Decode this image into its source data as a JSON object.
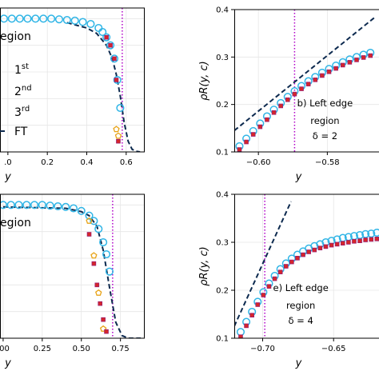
{
  "colors": {
    "fourth_order": "#30b5e6",
    "first_order": "#e8a317",
    "second_order": "#d62728",
    "third_order": "#9b1b6e",
    "ft": "#0d2a4f",
    "vline": "#b000c8"
  },
  "chart_data": [
    {
      "panel": "top-left",
      "type": "scatter",
      "xlabel": "y",
      "ylabel": "",
      "xlim": [
        -0.04,
        0.69
      ],
      "ylim": [
        0.0,
        1.08
      ],
      "xticks": [
        0.0,
        0.2,
        0.4,
        0.6
      ],
      "xtick_labels": [
        ".0",
        "0.2",
        "0.4",
        "0.6"
      ],
      "grid": true,
      "vline_x": 0.58,
      "legend": {
        "title_fragment": "egion",
        "items": [
          {
            "label_main": "1",
            "label_sup": "st",
            "series": "first"
          },
          {
            "label_main": "2",
            "label_sup": "nd",
            "series": "second"
          },
          {
            "label_main": "3",
            "label_sup": "rd",
            "series": "third"
          },
          {
            "label_main": "FT",
            "label_sup": "",
            "series": "ft"
          }
        ]
      },
      "series": [
        {
          "key": "fourth",
          "marker": "circle",
          "x": [
            -0.02,
            0.02,
            0.06,
            0.1,
            0.14,
            0.18,
            0.22,
            0.26,
            0.3,
            0.34,
            0.38,
            0.42,
            0.46,
            0.48,
            0.5,
            0.52,
            0.54,
            0.555,
            0.57
          ],
          "y": [
            1.0,
            1.0,
            1.0,
            1.0,
            1.0,
            1.0,
            1.0,
            0.995,
            0.99,
            0.985,
            0.975,
            0.96,
            0.93,
            0.9,
            0.86,
            0.8,
            0.7,
            0.54,
            0.33
          ]
        },
        {
          "key": "first",
          "marker": "pentagon",
          "x": [
            0.55,
            0.56
          ],
          "y": [
            0.17,
            0.12
          ]
        },
        {
          "key": "second",
          "marker": "square",
          "x": [
            0.5,
            0.52,
            0.54,
            0.55,
            0.56
          ],
          "y": [
            0.86,
            0.8,
            0.7,
            0.54,
            0.08
          ]
        },
        {
          "key": "ft",
          "type": "dashed-line",
          "x": [
            0.3,
            0.4,
            0.45,
            0.5,
            0.53,
            0.55,
            0.57,
            0.59,
            0.61,
            0.63,
            0.65,
            0.67
          ],
          "y": [
            0.97,
            0.93,
            0.89,
            0.8,
            0.7,
            0.58,
            0.42,
            0.22,
            0.08,
            0.02,
            0.005,
            0.0
          ]
        }
      ]
    },
    {
      "panel": "top-right",
      "type": "scatter",
      "xlabel": "y",
      "ylabel": "ρR(y, c)",
      "xlim": [
        -0.607,
        -0.565
      ],
      "ylim": [
        0.1,
        0.4
      ],
      "xticks": [
        -0.6,
        -0.58
      ],
      "xtick_labels": [
        "−0.60",
        "−0.58"
      ],
      "yticks": [
        0.1,
        0.2,
        0.3,
        0.4
      ],
      "ytick_labels": [
        "0.1",
        "0.2",
        "0.3",
        "0.4"
      ],
      "grid": true,
      "vline_x": -0.5895,
      "annotation": [
        "b) Left edge",
        "region",
        "δ = 2"
      ],
      "series": [
        {
          "key": "fourth",
          "marker": "circle",
          "x": [
            -0.6055,
            -0.6035,
            -0.6015,
            -0.5995,
            -0.5975,
            -0.5955,
            -0.5935,
            -0.5915,
            -0.5895,
            -0.5875,
            -0.5855,
            -0.5835,
            -0.5815,
            -0.5795,
            -0.5775,
            -0.5755,
            -0.5735,
            -0.5715,
            -0.5695,
            -0.5675
          ],
          "y": [
            0.112,
            0.128,
            0.144,
            0.16,
            0.175,
            0.189,
            0.203,
            0.216,
            0.228,
            0.239,
            0.249,
            0.258,
            0.267,
            0.275,
            0.282,
            0.289,
            0.295,
            0.3,
            0.305,
            0.309
          ]
        },
        {
          "key": "second",
          "marker": "square",
          "x": [
            -0.6055,
            -0.6035,
            -0.6015,
            -0.5995,
            -0.5975,
            -0.5955,
            -0.5935,
            -0.5915,
            -0.5895,
            -0.5875,
            -0.5855,
            -0.5835,
            -0.5815,
            -0.5795,
            -0.5775,
            -0.5755,
            -0.5735,
            -0.5715,
            -0.5695,
            -0.5675
          ],
          "y": [
            0.105,
            0.121,
            0.137,
            0.153,
            0.168,
            0.183,
            0.197,
            0.21,
            0.222,
            0.233,
            0.243,
            0.252,
            0.261,
            0.269,
            0.276,
            0.283,
            0.289,
            0.294,
            0.299,
            0.303
          ]
        },
        {
          "key": "ft",
          "type": "dashed-line",
          "x": [
            -0.607,
            -0.566
          ],
          "y": [
            0.145,
            0.385
          ]
        }
      ]
    },
    {
      "panel": "bottom-left",
      "type": "scatter",
      "xlabel": "y",
      "ylabel": "",
      "xlim": [
        -0.02,
        0.9
      ],
      "ylim": [
        0.0,
        1.08
      ],
      "xticks": [
        0.0,
        0.25,
        0.5,
        0.75
      ],
      "xtick_labels": [
        ".00",
        "0.25",
        "0.50",
        "0.75"
      ],
      "grid": true,
      "vline_x": 0.7,
      "legend": {
        "title_fragment": "egion"
      },
      "series": [
        {
          "key": "fourth",
          "marker": "circle",
          "x": [
            0.0,
            0.05,
            0.1,
            0.15,
            0.2,
            0.25,
            0.3,
            0.35,
            0.4,
            0.45,
            0.5,
            0.55,
            0.58,
            0.61,
            0.64,
            0.66,
            0.68
          ],
          "y": [
            1.0,
            1.0,
            1.0,
            1.0,
            1.0,
            1.0,
            0.995,
            0.99,
            0.985,
            0.975,
            0.955,
            0.92,
            0.88,
            0.82,
            0.72,
            0.63,
            0.5
          ]
        },
        {
          "key": "first",
          "marker": "pentagon",
          "x": [
            0.55,
            0.58,
            0.61,
            0.64
          ],
          "y": [
            0.88,
            0.62,
            0.34,
            0.07
          ]
        },
        {
          "key": "second",
          "marker": "square",
          "x": [
            0.55,
            0.58,
            0.6,
            0.62,
            0.64,
            0.66
          ],
          "y": [
            0.78,
            0.56,
            0.4,
            0.26,
            0.14,
            0.05
          ]
        },
        {
          "key": "ft",
          "type": "dashed-line",
          "x": [
            0.0,
            0.4,
            0.5,
            0.55,
            0.6,
            0.64,
            0.68,
            0.72,
            0.76,
            0.8,
            0.88
          ],
          "y": [
            0.985,
            0.975,
            0.95,
            0.92,
            0.84,
            0.66,
            0.38,
            0.12,
            0.02,
            0.0,
            0.0
          ]
        }
      ]
    },
    {
      "panel": "bottom-right",
      "type": "scatter",
      "xlabel": "y",
      "ylabel": "ρR(y, c)",
      "xlim": [
        -0.72,
        -0.618
      ],
      "ylim": [
        0.1,
        0.4
      ],
      "xticks": [
        -0.7,
        -0.65
      ],
      "xtick_labels": [
        "−0.70",
        "−0.65"
      ],
      "yticks": [
        0.1,
        0.2,
        0.3,
        0.4
      ],
      "ytick_labels": [
        "0.1",
        "0.2",
        "0.3",
        "0.4"
      ],
      "grid": true,
      "vline_x": -0.6985,
      "annotation": [
        "e) Left edge",
        "region",
        "δ = 4"
      ],
      "series": [
        {
          "key": "fourth",
          "marker": "circle",
          "x": [
            -0.7155,
            -0.7115,
            -0.7075,
            -0.7035,
            -0.6995,
            -0.6955,
            -0.6915,
            -0.6875,
            -0.6835,
            -0.6795,
            -0.6755,
            -0.6715,
            -0.6675,
            -0.6635,
            -0.6595,
            -0.6555,
            -0.6515,
            -0.6475,
            -0.6435,
            -0.6395,
            -0.6355,
            -0.6315,
            -0.6275,
            -0.6235,
            -0.6195
          ],
          "y": [
            0.113,
            0.134,
            0.155,
            0.176,
            0.196,
            0.214,
            0.23,
            0.244,
            0.256,
            0.266,
            0.274,
            0.281,
            0.287,
            0.292,
            0.296,
            0.3,
            0.303,
            0.306,
            0.309,
            0.311,
            0.313,
            0.315,
            0.317,
            0.318,
            0.32
          ]
        },
        {
          "key": "second",
          "marker": "square",
          "x": [
            -0.7155,
            -0.7115,
            -0.7075,
            -0.7035,
            -0.6995,
            -0.6955,
            -0.6915,
            -0.6875,
            -0.6835,
            -0.6795,
            -0.6755,
            -0.6715,
            -0.6675,
            -0.6635,
            -0.6595,
            -0.6555,
            -0.6515,
            -0.6475,
            -0.6435,
            -0.6395,
            -0.6355,
            -0.6315,
            -0.6275,
            -0.6235,
            -0.6195
          ],
          "y": [
            0.103,
            0.126,
            0.148,
            0.17,
            0.19,
            0.208,
            0.224,
            0.238,
            0.25,
            0.259,
            0.267,
            0.274,
            0.28,
            0.284,
            0.288,
            0.291,
            0.294,
            0.296,
            0.298,
            0.3,
            0.302,
            0.303,
            0.305,
            0.306,
            0.307
          ]
        },
        {
          "key": "ft",
          "type": "dashed-line",
          "x": [
            -0.72,
            -0.68
          ],
          "y": [
            0.125,
            0.385
          ]
        }
      ]
    }
  ]
}
